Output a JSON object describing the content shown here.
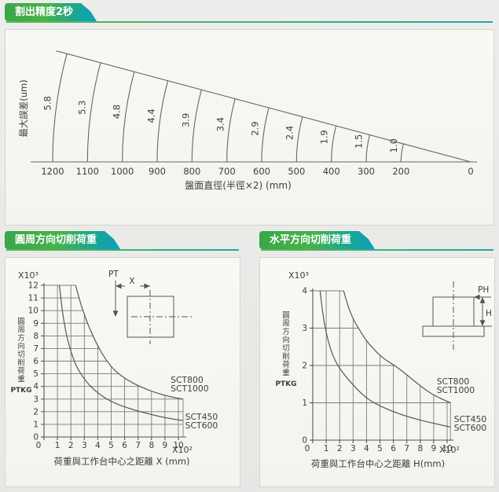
{
  "headers": {
    "fan": "割出精度2秒",
    "circumferential": "圓周方向切削荷重",
    "horizontal": "水平方向切削荷重"
  },
  "theme": {
    "badge_green": "#47b24a",
    "badge_teal": "#0d9fc4",
    "underline_green": "#5cb94d",
    "line_color": "#666666",
    "text_color": "#3d3d3d",
    "panel_bg": "#f6f6f3"
  },
  "chart_data": [
    {
      "id": "indexing-accuracy",
      "type": "line",
      "variant": "fan",
      "title": "割出精度2秒",
      "xlabel": "盤面直徑(半徑×2)  (mm)",
      "ylabel": "最大誤差(um)",
      "categories": [
        1200,
        1100,
        1000,
        900,
        800,
        700,
        600,
        500,
        400,
        300,
        200
      ],
      "values": [
        5.8,
        5.3,
        4.8,
        4.4,
        3.9,
        3.4,
        2.9,
        2.4,
        1.9,
        1.5,
        1.0
      ],
      "x_axis_end_label": "0",
      "xlim": [
        0,
        1200
      ],
      "fan_angle_deg": 15,
      "grid": false,
      "legend": "none"
    },
    {
      "id": "circumferential-cutting-load",
      "type": "line",
      "title": "圓周方向切削荷重",
      "xlabel": "荷重與工作台中心之距離 X (mm)",
      "ylabel": "圓周方向切削荷重",
      "ylabel_unit": "PTKG",
      "x_scale_note": "X10²",
      "y_scale_note": "X10³",
      "xlim": [
        0,
        10.35
      ],
      "ylim": [
        0,
        12
      ],
      "x_ticks": [
        0,
        1,
        2,
        3,
        4,
        5,
        6,
        7,
        8,
        9,
        10
      ],
      "y_ticks": [
        0,
        1,
        2,
        3,
        4,
        5,
        6,
        7,
        8,
        9,
        10,
        11,
        12
      ],
      "grid": true,
      "series": [
        {
          "name": "SCT800 / SCT1000",
          "label_lines": [
            "SCT800",
            "SCT1000"
          ],
          "label_pos": [
            9.42,
            4.3
          ],
          "points": [
            [
              2.35,
              12
            ],
            [
              2.6,
              11
            ],
            [
              2.9,
              10
            ],
            [
              3.2,
              9.1
            ],
            [
              3.6,
              8.1
            ],
            [
              4.05,
              7.1
            ],
            [
              4.6,
              6.1
            ],
            [
              5.3,
              5.2
            ],
            [
              6.2,
              4.5
            ],
            [
              7.2,
              3.95
            ],
            [
              8.3,
              3.5
            ],
            [
              9.3,
              3.2
            ],
            [
              10.35,
              3.0
            ]
          ]
        },
        {
          "name": "SCT450 / SCT600",
          "label_lines": [
            "SCT450",
            "SCT600"
          ],
          "label_pos": [
            10.5,
            1.38
          ],
          "points": [
            [
              1.15,
              12
            ],
            [
              1.3,
              10.5
            ],
            [
              1.5,
              9
            ],
            [
              1.75,
              7.7
            ],
            [
              2.05,
              6.6
            ],
            [
              2.4,
              5.6
            ],
            [
              2.85,
              4.8
            ],
            [
              3.4,
              4.05
            ],
            [
              4.1,
              3.4
            ],
            [
              4.9,
              2.85
            ],
            [
              5.8,
              2.45
            ],
            [
              6.8,
              2.1
            ],
            [
              7.9,
              1.8
            ],
            [
              9.1,
              1.5
            ],
            [
              10.35,
              1.3
            ]
          ]
        }
      ],
      "inset": {
        "force_label": "PT",
        "dim_label": "X"
      }
    },
    {
      "id": "horizontal-cutting-load",
      "type": "line",
      "title": "水平方向切削荷重",
      "xlabel": "荷重與工作台中心之距離 H(mm)",
      "ylabel": "圓周方向切削荷重",
      "ylabel_unit": "PTKG",
      "x_scale_note": "X10²",
      "y_scale_note": "X10³",
      "xlim": [
        0,
        10.25
      ],
      "ylim": [
        0,
        4
      ],
      "x_ticks": [
        0,
        1,
        2,
        3,
        4,
        5,
        6,
        7,
        8,
        9,
        10
      ],
      "y_ticks": [
        0,
        1,
        2,
        3,
        4
      ],
      "grid": true,
      "series": [
        {
          "name": "SCT800 / SCT1000",
          "label_lines": [
            "SCT800",
            "SCT1000"
          ],
          "label_pos": [
            9.22,
            1.5
          ],
          "points": [
            [
              2.3,
              4
            ],
            [
              2.6,
              3.6
            ],
            [
              3.0,
              3.25
            ],
            [
              3.4,
              3.0
            ],
            [
              3.9,
              2.7
            ],
            [
              4.5,
              2.45
            ],
            [
              5.2,
              2.2
            ],
            [
              6.1,
              2.0
            ],
            [
              7.0,
              1.75
            ],
            [
              8.0,
              1.45
            ],
            [
              9.0,
              1.2
            ],
            [
              10.25,
              1.0
            ]
          ]
        },
        {
          "name": "SCT450 / SCT600",
          "label_lines": [
            "SCT450",
            "SCT600"
          ],
          "label_pos": [
            10.5,
            0.48
          ],
          "points": [
            [
              0.55,
              4
            ],
            [
              0.7,
              3.5
            ],
            [
              0.9,
              3.05
            ],
            [
              1.15,
              2.65
            ],
            [
              1.45,
              2.3
            ],
            [
              1.85,
              2.0
            ],
            [
              2.35,
              1.75
            ],
            [
              2.95,
              1.5
            ],
            [
              3.6,
              1.25
            ],
            [
              4.3,
              1.05
            ],
            [
              5.2,
              0.88
            ],
            [
              6.3,
              0.72
            ],
            [
              7.6,
              0.57
            ],
            [
              9.0,
              0.45
            ],
            [
              10.25,
              0.35
            ]
          ]
        }
      ],
      "inset": {
        "force_label": "PH",
        "dim_label": "H"
      }
    }
  ]
}
